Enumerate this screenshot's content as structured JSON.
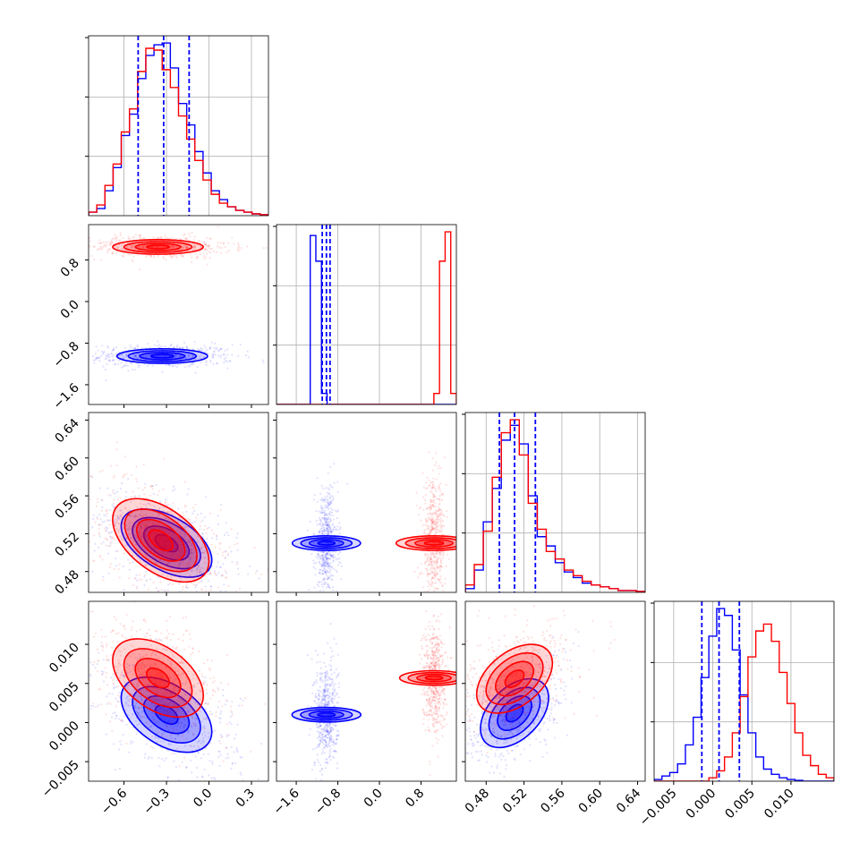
{
  "chart_data": {
    "type": "corner",
    "title": "",
    "series": [
      {
        "name": "",
        "color": "#0000ff",
        "means": [
          -0.33,
          -1.05,
          0.51,
          0.001
        ]
      },
      {
        "name": "",
        "color": "#ff0000",
        "means": [
          -0.36,
          1.05,
          0.51,
          0.0055
        ]
      }
    ],
    "grid": true,
    "quantile_color": "#0000ff",
    "parameters": [
      {
        "range": [
          -0.85,
          0.42
        ],
        "ticks": [
          -0.6,
          -0.3,
          0.0,
          0.3
        ],
        "tick_labels": [
          "−0.6",
          "−0.3",
          "0.0",
          "0.3"
        ],
        "quantiles": [
          -0.5,
          -0.32,
          -0.14
        ],
        "hist_blue": [
          0.02,
          0.04,
          0.14,
          0.27,
          0.45,
          0.57,
          0.77,
          0.9,
          0.96,
          0.97,
          0.83,
          0.63,
          0.51,
          0.36,
          0.24,
          0.14,
          0.09,
          0.05,
          0.03,
          0.02,
          0.01,
          0.005
        ],
        "hist_red": [
          0.02,
          0.06,
          0.17,
          0.29,
          0.47,
          0.6,
          0.81,
          0.94,
          0.93,
          0.82,
          0.72,
          0.56,
          0.43,
          0.31,
          0.2,
          0.12,
          0.07,
          0.05,
          0.03,
          0.02,
          0.01,
          0.005
        ]
      },
      {
        "range": [
          -1.98,
          1.48
        ],
        "ticks": [
          -1.6,
          -0.8,
          0.0,
          0.8
        ],
        "tick_labels": [
          "−1.6",
          "−0.8",
          "0.0",
          "0.8"
        ],
        "quantiles": [
          -1.1,
          -1.02,
          -0.95
        ],
        "hist_blue": [
          0,
          0,
          0,
          0,
          0,
          0,
          0.92,
          0.78,
          0.06,
          0,
          0,
          0,
          0,
          0,
          0,
          0,
          0,
          0,
          0,
          0,
          0,
          0,
          0,
          0,
          0,
          0,
          0,
          0,
          0,
          0,
          0,
          0
        ],
        "hist_red": [
          0,
          0,
          0,
          0,
          0,
          0,
          0,
          0,
          0,
          0,
          0,
          0,
          0,
          0,
          0,
          0,
          0,
          0,
          0,
          0,
          0,
          0,
          0,
          0,
          0,
          0,
          0,
          0,
          0.06,
          0.78,
          0.94,
          0.06
        ]
      },
      {
        "range": [
          0.458,
          0.648
        ],
        "ticks": [
          0.48,
          0.52,
          0.56,
          0.6,
          0.64
        ],
        "tick_labels": [
          "0.48",
          "0.52",
          "0.56",
          "0.60",
          "0.64"
        ],
        "quantiles": [
          0.494,
          0.51,
          0.532
        ],
        "hist_blue": [
          0.02,
          0.12,
          0.38,
          0.56,
          0.82,
          0.9,
          0.8,
          0.52,
          0.3,
          0.25,
          0.16,
          0.11,
          0.08,
          0.05,
          0.04,
          0.03,
          0.02,
          0.01,
          0.01,
          0.005
        ],
        "hist_red": [
          0.04,
          0.15,
          0.33,
          0.62,
          0.86,
          0.93,
          0.74,
          0.48,
          0.34,
          0.22,
          0.18,
          0.12,
          0.09,
          0.06,
          0.04,
          0.03,
          0.02,
          0.01,
          0.01,
          0.005
        ]
      },
      {
        "range": [
          -0.0075,
          0.0155
        ],
        "ticks": [
          -0.005,
          0.0,
          0.005,
          0.01
        ],
        "tick_labels": [
          "−0.005",
          "0.000",
          "0.005",
          "0.010"
        ],
        "quantiles": [
          -0.0014,
          0.0008,
          0.0034
        ],
        "hist_blue": [
          0.01,
          0.03,
          0.05,
          0.1,
          0.21,
          0.37,
          0.6,
          0.84,
          1.0,
          0.96,
          0.76,
          0.5,
          0.28,
          0.14,
          0.07,
          0.04,
          0.02,
          0.01,
          0.005,
          0,
          0,
          0,
          0
        ],
        "hist_red": [
          0,
          0,
          0,
          0,
          0,
          0,
          0,
          0.02,
          0.06,
          0.14,
          0.28,
          0.49,
          0.72,
          0.87,
          0.91,
          0.81,
          0.63,
          0.45,
          0.28,
          0.15,
          0.09,
          0.04,
          0.02
        ]
      }
    ],
    "pairs": [
      {
        "row": 1,
        "col": 0,
        "blue": {
          "mean": [
            -0.33,
            -1.05
          ],
          "std": [
            0.16,
            0.07
          ],
          "rho": 0.0
        },
        "red": {
          "mean": [
            -0.36,
            1.05
          ],
          "std": [
            0.16,
            0.07
          ],
          "rho": 0.0
        }
      },
      {
        "row": 2,
        "col": 0,
        "blue": {
          "mean": [
            -0.3,
            0.51
          ],
          "std": [
            0.16,
            0.018
          ],
          "rho": -0.5
        },
        "red": {
          "mean": [
            -0.34,
            0.513
          ],
          "std": [
            0.17,
            0.022
          ],
          "rho": -0.5
        }
      },
      {
        "row": 2,
        "col": 1,
        "blue": {
          "mean": [
            -1.02,
            0.51
          ],
          "std": [
            0.07,
            0.018
          ],
          "rho": 0.0
        },
        "red": {
          "mean": [
            1.05,
            0.51
          ],
          "std": [
            0.07,
            0.02
          ],
          "rho": 0.0
        }
      },
      {
        "row": 3,
        "col": 0,
        "blue": {
          "mean": [
            -0.3,
            0.001
          ],
          "std": [
            0.16,
            0.0024
          ],
          "rho": -0.45
        },
        "red": {
          "mean": [
            -0.36,
            0.0057
          ],
          "std": [
            0.16,
            0.0025
          ],
          "rho": -0.45
        }
      },
      {
        "row": 3,
        "col": 1,
        "blue": {
          "mean": [
            -1.02,
            0.001
          ],
          "std": [
            0.07,
            0.0022
          ],
          "rho": 0.0
        },
        "red": {
          "mean": [
            1.05,
            0.0057
          ],
          "std": [
            0.07,
            0.0022
          ],
          "rho": 0.0
        }
      },
      {
        "row": 3,
        "col": 2,
        "blue": {
          "mean": [
            0.51,
            0.0012
          ],
          "std": [
            0.018,
            0.0022
          ],
          "rho": 0.45
        },
        "red": {
          "mean": [
            0.51,
            0.0056
          ],
          "std": [
            0.02,
            0.0022
          ],
          "rho": 0.45
        }
      }
    ]
  }
}
